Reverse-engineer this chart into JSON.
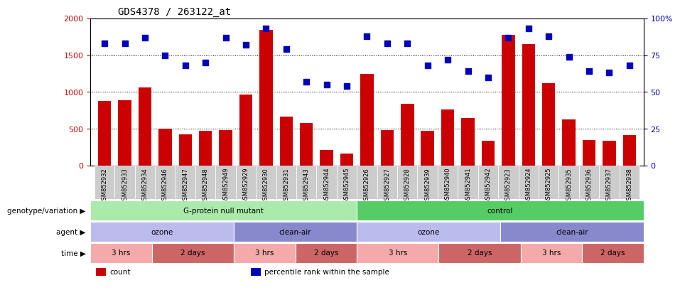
{
  "title": "GDS4378 / 263122_at",
  "samples": [
    "GSM852932",
    "GSM852933",
    "GSM852934",
    "GSM852946",
    "GSM852947",
    "GSM852948",
    "GSM852949",
    "GSM852929",
    "GSM852930",
    "GSM852931",
    "GSM852943",
    "GSM852944",
    "GSM852945",
    "GSM852926",
    "GSM852927",
    "GSM852928",
    "GSM852939",
    "GSM852940",
    "GSM852941",
    "GSM852942",
    "GSM852923",
    "GSM852924",
    "GSM852925",
    "GSM852935",
    "GSM852936",
    "GSM852937",
    "GSM852938"
  ],
  "counts": [
    880,
    890,
    1060,
    500,
    420,
    470,
    480,
    960,
    1840,
    660,
    580,
    210,
    160,
    1240,
    480,
    840,
    470,
    760,
    650,
    340,
    1780,
    1650,
    1120,
    630,
    350,
    340,
    410
  ],
  "percentiles": [
    83,
    83,
    87,
    75,
    68,
    70,
    87,
    82,
    93,
    79,
    57,
    55,
    54,
    88,
    83,
    83,
    68,
    72,
    64,
    60,
    87,
    93,
    88,
    74,
    64,
    63,
    68
  ],
  "bar_color": "#cc0000",
  "dot_color": "#0000bb",
  "ylim_left": [
    0,
    2000
  ],
  "ylim_right": [
    0,
    100
  ],
  "yticks_left": [
    0,
    500,
    1000,
    1500,
    2000
  ],
  "yticks_right": [
    0,
    25,
    50,
    75,
    100
  ],
  "ytick_labels_right": [
    "0",
    "25",
    "50",
    "75",
    "100%"
  ],
  "grid_values": [
    500,
    1000,
    1500
  ],
  "genotype_groups": [
    {
      "label": "G-protein null mutant",
      "start": 0,
      "end": 13,
      "color": "#aaeaaa"
    },
    {
      "label": "control",
      "start": 13,
      "end": 27,
      "color": "#55cc66"
    }
  ],
  "agent_groups": [
    {
      "label": "ozone",
      "start": 0,
      "end": 7,
      "color": "#bbbbee"
    },
    {
      "label": "clean-air",
      "start": 7,
      "end": 13,
      "color": "#8888cc"
    },
    {
      "label": "ozone",
      "start": 13,
      "end": 20,
      "color": "#bbbbee"
    },
    {
      "label": "clean-air",
      "start": 20,
      "end": 27,
      "color": "#8888cc"
    }
  ],
  "time_groups": [
    {
      "label": "3 hrs",
      "start": 0,
      "end": 3,
      "color": "#f4aaaa"
    },
    {
      "label": "2 days",
      "start": 3,
      "end": 7,
      "color": "#cc6666"
    },
    {
      "label": "3 hrs",
      "start": 7,
      "end": 10,
      "color": "#f4aaaa"
    },
    {
      "label": "2 days",
      "start": 10,
      "end": 13,
      "color": "#cc6666"
    },
    {
      "label": "3 hrs",
      "start": 13,
      "end": 17,
      "color": "#f4aaaa"
    },
    {
      "label": "2 days",
      "start": 17,
      "end": 21,
      "color": "#cc6666"
    },
    {
      "label": "3 hrs",
      "start": 21,
      "end": 24,
      "color": "#f4aaaa"
    },
    {
      "label": "2 days",
      "start": 24,
      "end": 27,
      "color": "#cc6666"
    }
  ],
  "row_labels": [
    "genotype/variation",
    "agent",
    "time"
  ],
  "legend_items": [
    {
      "label": "count",
      "color": "#cc0000"
    },
    {
      "label": "percentile rank within the sample",
      "color": "#0000bb"
    }
  ],
  "background_color": "#ffffff",
  "plot_bg_color": "#ffffff",
  "xtick_bg": "#cccccc"
}
